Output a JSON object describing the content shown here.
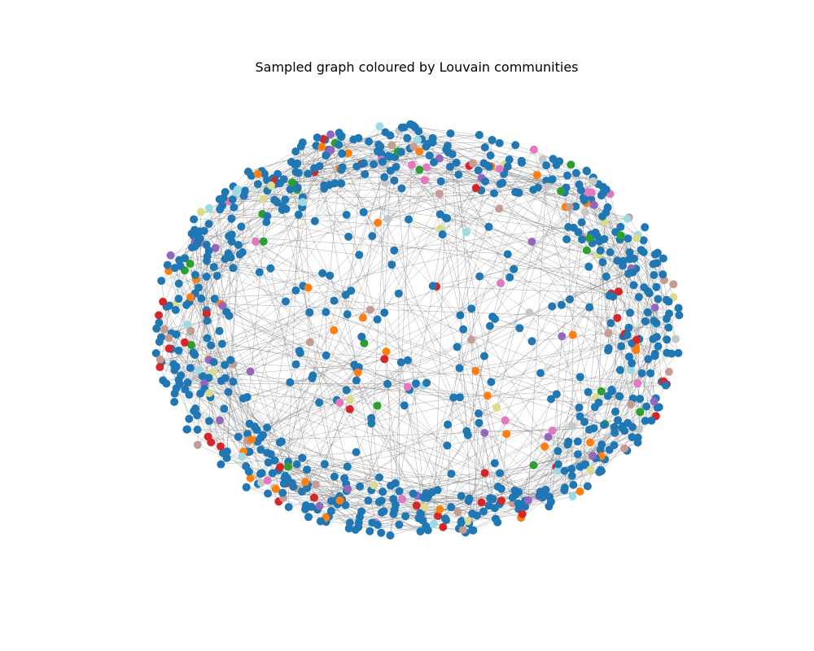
{
  "chart_data": {
    "type": "network",
    "title": "Sampled graph coloured by Louvain communities",
    "layout": "spring (node positions not data)",
    "axes_visible": false,
    "node_count_shown_approx": 900,
    "edges_style": "thin grey lines",
    "communities": [
      {
        "color": "#1f77b4",
        "share": 0.7
      },
      {
        "color": "#ff7f0e",
        "share": 0.05
      },
      {
        "color": "#2ca02c",
        "share": 0.03
      },
      {
        "color": "#d62728",
        "share": 0.04
      },
      {
        "color": "#9467bd",
        "share": 0.025
      },
      {
        "color": "#8c564b",
        "share": 0.0
      },
      {
        "color": "#e377c2",
        "share": 0.025
      },
      {
        "color": "#c49c94",
        "share": 0.03
      },
      {
        "color": "#c7c7c7",
        "share": 0.02
      },
      {
        "color": "#dbdb8d",
        "share": 0.025
      },
      {
        "color": "#9edae5",
        "share": 0.025
      }
    ]
  }
}
